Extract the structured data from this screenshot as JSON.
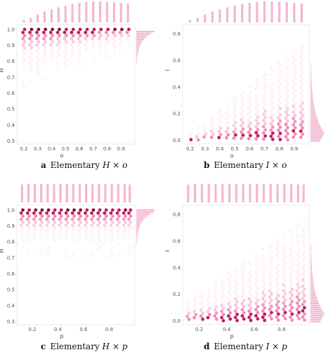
{
  "colors": {
    "marginal": "#f4b6d2",
    "light": "#fce4ef",
    "mid": "#f08ab4",
    "dark": "#c2185b",
    "darkest": "#8b0a2a",
    "frame": "#e6e6e6"
  },
  "chart_data": [
    {
      "id": "a",
      "type": "hexbin-joint",
      "caption": {
        "letter": "a",
        "prefix": "Elementary",
        "math": "H × o"
      },
      "xlabel": "o",
      "ylabel": "H",
      "xlim": [
        0.15,
        1.0
      ],
      "ylim": [
        0.28,
        1.03
      ],
      "xticks": [
        "0.2",
        "0.3",
        "0.4",
        "0.5",
        "0.6",
        "0.7",
        "0.8",
        "0.9"
      ],
      "yticks": [
        "0.3",
        "0.4",
        "0.5",
        "0.6",
        "0.7",
        "0.8",
        "0.9",
        "1.0"
      ],
      "x": [
        0.2,
        0.25,
        0.3,
        0.35,
        0.4,
        0.45,
        0.5,
        0.55,
        0.6,
        0.65,
        0.7,
        0.75,
        0.8,
        0.85,
        0.9,
        0.95
      ],
      "top_hist": [
        0.12,
        0.22,
        0.38,
        0.52,
        0.62,
        0.72,
        0.8,
        0.88,
        0.93,
        0.97,
        1.0,
        1.0,
        0.98,
        0.96,
        0.93,
        0.9
      ],
      "band": {
        "lower_start": 0.62,
        "lower_end": 0.87,
        "upper": 1.0
      },
      "side_hist_peak": 0.985
    },
    {
      "id": "b",
      "type": "hexbin-joint",
      "caption": {
        "letter": "b",
        "prefix": "Elementary",
        "math": "I × o"
      },
      "xlabel": "o",
      "ylabel": "I",
      "xlim": [
        0.15,
        1.0
      ],
      "ylim": [
        -0.03,
        0.87
      ],
      "xticks": [
        "0.2",
        "0.3",
        "0.4",
        "0.5",
        "0.6",
        "0.7",
        "0.8",
        "0.9"
      ],
      "yticks": [
        "0.0",
        "0.2",
        "0.4",
        "0.6",
        "0.8"
      ],
      "x": [
        0.2,
        0.25,
        0.3,
        0.35,
        0.4,
        0.45,
        0.5,
        0.55,
        0.6,
        0.65,
        0.7,
        0.75,
        0.8,
        0.85,
        0.9,
        0.95
      ],
      "top_hist": [
        0.12,
        0.22,
        0.38,
        0.52,
        0.62,
        0.72,
        0.8,
        0.88,
        0.93,
        0.97,
        1.0,
        1.0,
        0.98,
        0.96,
        0.93,
        0.9
      ],
      "band": {
        "lower": 0.0,
        "upper_start": 0.05,
        "upper_end": 0.72
      },
      "side_hist_peak": 0.05
    },
    {
      "id": "c",
      "type": "hexbin-joint",
      "caption": {
        "letter": "c",
        "prefix": "Elementary",
        "math": "H × p"
      },
      "xlabel": "p",
      "ylabel": "H",
      "xlim": [
        0.08,
        1.0
      ],
      "ylim": [
        0.28,
        1.03
      ],
      "xticks": [
        "0.2",
        "0.4",
        "0.6",
        "0.8"
      ],
      "yticks": [
        "0.3",
        "0.4",
        "0.5",
        "0.6",
        "0.7",
        "0.8",
        "0.9",
        "1.0"
      ],
      "x": [
        0.12,
        0.17,
        0.22,
        0.27,
        0.32,
        0.37,
        0.42,
        0.47,
        0.52,
        0.57,
        0.62,
        0.67,
        0.72,
        0.77,
        0.82,
        0.87,
        0.92,
        0.96
      ],
      "top_hist": [
        0.85,
        0.87,
        0.86,
        0.88,
        0.87,
        0.86,
        0.88,
        0.87,
        0.86,
        0.87,
        0.88,
        0.86,
        0.87,
        0.86,
        0.88,
        0.87,
        0.86,
        0.85
      ],
      "band": {
        "lower": 0.7,
        "upper": 1.0
      },
      "side_hist_peak": 0.99
    },
    {
      "id": "d",
      "type": "hexbin-joint",
      "caption": {
        "letter": "d",
        "prefix": "Elementary",
        "math": "I × p"
      },
      "xlabel": "p",
      "ylabel": "I",
      "xlim": [
        0.08,
        1.0
      ],
      "ylim": [
        -0.03,
        0.87
      ],
      "xticks": [
        "0.2",
        "0.4",
        "0.6",
        "0.8"
      ],
      "yticks": [
        "0.0",
        "0.2",
        "0.4",
        "0.6",
        "0.8"
      ],
      "x": [
        0.12,
        0.17,
        0.22,
        0.27,
        0.32,
        0.37,
        0.42,
        0.47,
        0.52,
        0.57,
        0.62,
        0.67,
        0.72,
        0.77,
        0.82,
        0.87,
        0.92,
        0.96
      ],
      "top_hist": [
        0.85,
        0.87,
        0.86,
        0.88,
        0.87,
        0.86,
        0.88,
        0.87,
        0.86,
        0.87,
        0.88,
        0.86,
        0.87,
        0.86,
        0.88,
        0.87,
        0.86,
        0.85
      ],
      "band": {
        "lower": 0.0,
        "upper_start": 0.15,
        "upper_end": 0.75
      },
      "side_hist_peak": 0.05
    }
  ]
}
